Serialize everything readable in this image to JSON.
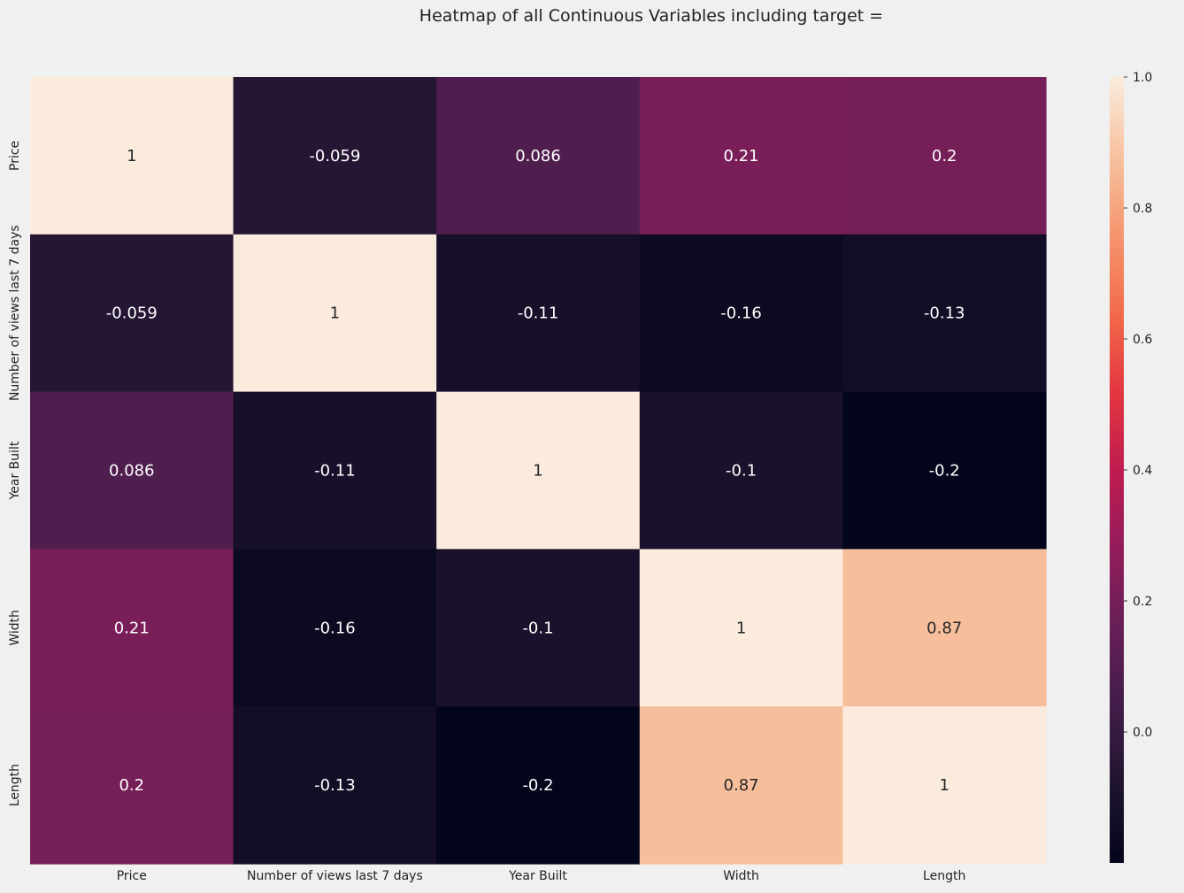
{
  "chart_data": {
    "type": "heatmap",
    "title": "Heatmap of all Continuous Variables including target =",
    "x_labels": [
      "Price",
      "Number of views last 7 days",
      "Year Built",
      "Width",
      "Length"
    ],
    "y_labels": [
      "Price",
      "Number of views last 7 days",
      "Year Built",
      "Width",
      "Length"
    ],
    "values": [
      [
        1,
        -0.059,
        0.086,
        0.21,
        0.2
      ],
      [
        -0.059,
        1,
        -0.11,
        -0.16,
        -0.13
      ],
      [
        0.086,
        -0.11,
        1,
        -0.1,
        -0.2
      ],
      [
        0.21,
        -0.16,
        -0.1,
        1,
        0.87
      ],
      [
        0.2,
        -0.13,
        -0.2,
        0.87,
        1
      ]
    ],
    "annotations": [
      [
        "1",
        "-0.059",
        "0.086",
        "0.21",
        "0.2"
      ],
      [
        "-0.059",
        "1",
        "-0.11",
        "-0.16",
        "-0.13"
      ],
      [
        "0.086",
        "-0.11",
        "1",
        "-0.1",
        "-0.2"
      ],
      [
        "0.21",
        "-0.16",
        "-0.1",
        "1",
        "0.87"
      ],
      [
        "0.2",
        "-0.13",
        "-0.2",
        "0.87",
        "1"
      ]
    ],
    "colorbar": {
      "vmin": -0.2,
      "vmax": 1.0,
      "ticks": [
        0.0,
        0.2,
        0.4,
        0.6,
        0.8,
        1.0
      ],
      "tick_labels": [
        "0.0",
        "0.2",
        "0.4",
        "0.6",
        "0.8",
        "1.0"
      ],
      "colormap": "rocket"
    }
  }
}
